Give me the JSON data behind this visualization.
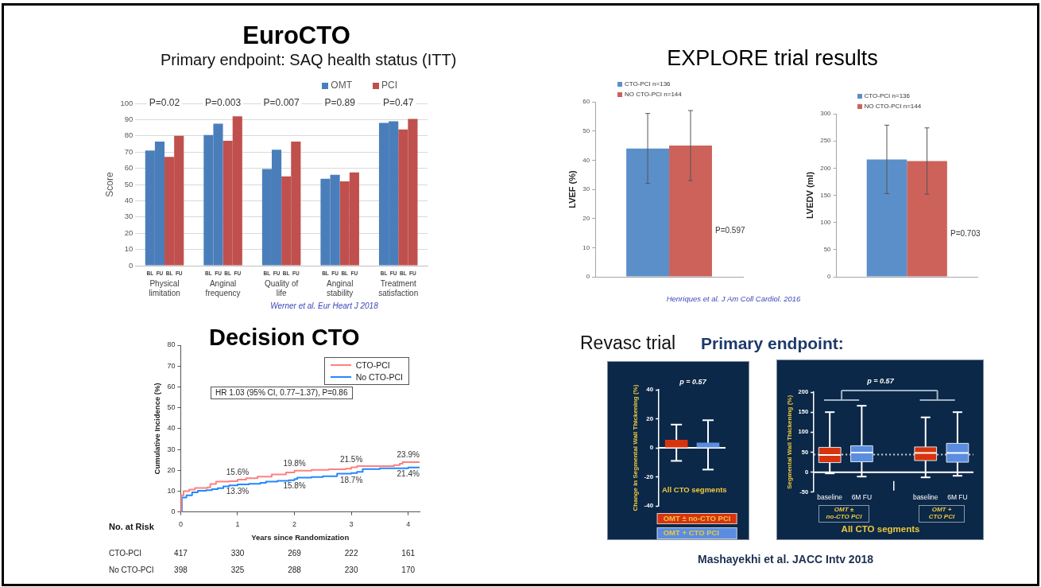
{
  "chart_data": [
    {
      "type": "bar",
      "title": "EuroCTO",
      "subtitle": "Primary endpoint: SAQ health status (ITT)",
      "ylabel": "Score",
      "categories": [
        "Physical limitation",
        "Anginal frequency",
        "Quality of life",
        "Anginal stability",
        "Treatment satisfaction"
      ],
      "series": [
        {
          "name": "OMT",
          "color": "#4a7ebb",
          "values": [
            71,
            80.5,
            59.5,
            53.5,
            88
          ]
        },
        {
          "color": "#4a7ebb",
          "values": [
            76.5,
            87.5,
            71.5,
            56,
            89
          ]
        },
        {
          "name": "PCI",
          "color": "#c0504d",
          "values": [
            67,
            77,
            55,
            52,
            84
          ]
        },
        {
          "color": "#c0504d",
          "values": [
            80,
            92,
            76.5,
            57.5,
            90.5
          ]
        }
      ],
      "ylim": [
        0,
        100
      ],
      "yticks": [
        0,
        10,
        20,
        30,
        40,
        50,
        60,
        70,
        80,
        90,
        100
      ],
      "grid": "y",
      "legend": "top right",
      "annotations": [
        "P=0.02",
        "P=0.003",
        "P=0.007",
        "P=0.89",
        "P=0.47",
        "BL",
        "FU",
        "BL",
        "FU",
        "BL",
        "FU",
        "BL",
        "FU",
        "BL",
        "FU",
        "BL",
        "FU",
        "BL",
        "FU",
        "BL",
        "FU",
        "BL",
        "FU",
        "BL",
        "FU",
        "Werner et al. Eur Heart J 2018"
      ]
    },
    {
      "type": "bar",
      "title": "EXPLORE trial results",
      "ylabel": "LVEF (%)",
      "categories": [
        null
      ],
      "series": [
        {
          "name": "CTO-PCI n=136",
          "color": "#5b8fc9",
          "values": [
            44
          ],
          "errors": [
            12
          ]
        },
        {
          "name": "NO CTO-PCI n=144",
          "color": "#cd625b",
          "values": [
            45
          ],
          "errors": [
            12
          ]
        }
      ],
      "ylim": [
        0,
        60
      ],
      "yticks": [
        0,
        10,
        20,
        30,
        40,
        50,
        60
      ],
      "legend": "top left",
      "annotations": [
        "P=0.597",
        "Henriques et al. J Am Coll Cardiol. 2016"
      ]
    },
    {
      "type": "bar",
      "ylabel": "LVEDV (ml)",
      "categories": [
        null
      ],
      "series": [
        {
          "name": "CTO-PCI n=136",
          "color": "#5b8fc9",
          "values": [
            216
          ],
          "errors": [
            63
          ]
        },
        {
          "name": "NO CTO-PCI n=144",
          "color": "#cd625b",
          "values": [
            213
          ],
          "errors": [
            61
          ]
        }
      ],
      "ylim": [
        0,
        300
      ],
      "yticks": [
        0,
        50,
        100,
        150,
        200,
        250,
        300
      ],
      "legend": "top left",
      "annotations": [
        "P=0.703"
      ]
    },
    {
      "type": "step",
      "title": "Decision CTO",
      "xlabel": "Years since Randomization",
      "ylabel": "Cumulative Incidence (%)",
      "xlim": [
        0,
        4.2
      ],
      "xticks": [
        0,
        1,
        2,
        3,
        4
      ],
      "ylim": [
        0,
        80
      ],
      "yticks": [
        0,
        10,
        20,
        30,
        40,
        50,
        60,
        70,
        80
      ],
      "legend": "top right",
      "series": [
        {
          "name": "CTO-PCI",
          "color": "#ff8080",
          "x": [
            0,
            0.01,
            0.05,
            0.15,
            0.25,
            0.47,
            0.52,
            0.62,
            0.85,
            1,
            1.15,
            1.35,
            1.6,
            1.85,
            2,
            2.3,
            2.6,
            2.9,
            3,
            3.1,
            3.75,
            3.85,
            3.9,
            4,
            4.2
          ],
          "values": [
            0,
            8,
            10,
            10.8,
            11.6,
            11.8,
            13.5,
            14.6,
            14.8,
            15.6,
            16.2,
            17,
            18,
            19,
            19.8,
            20.2,
            20.5,
            20.8,
            21.5,
            22,
            22.5,
            23.2,
            23.9,
            23.9,
            23.9
          ],
          "value_labels": [
            null,
            null,
            null,
            null,
            null,
            null,
            null,
            null,
            null,
            "15.6%",
            null,
            null,
            null,
            null,
            "19.8%",
            null,
            null,
            null,
            "21.5%",
            null,
            null,
            null,
            null,
            "23.9%",
            null
          ]
        },
        {
          "name": "No CTO-PCI",
          "color": "#2288ff",
          "x": [
            0,
            0.02,
            0.1,
            0.2,
            0.3,
            0.45,
            0.55,
            0.65,
            0.75,
            0.85,
            1,
            1.2,
            1.4,
            1.5,
            1.7,
            1.9,
            2,
            2.05,
            2.3,
            2.5,
            2.75,
            3,
            3.1,
            3.2,
            3.5,
            4,
            4.2
          ],
          "values": [
            0,
            7,
            8,
            9.5,
            10.2,
            10.5,
            11,
            11.5,
            12.3,
            12.8,
            13.3,
            13.6,
            14,
            14.6,
            15,
            15.3,
            15.8,
            16.5,
            16.8,
            17.2,
            18.4,
            18.7,
            19.3,
            20.6,
            21,
            21.4,
            21.8
          ],
          "value_labels": [
            null,
            null,
            null,
            null,
            null,
            null,
            null,
            null,
            null,
            null,
            "13.3%",
            null,
            null,
            null,
            null,
            null,
            "15.8%",
            null,
            null,
            null,
            null,
            "18.7%",
            null,
            null,
            null,
            "21.4%",
            null
          ]
        }
      ],
      "annotations": [
        "HR 1.03 (95% CI, 0.77–1.37), P=0.86",
        "No. at Risk",
        "417",
        "330",
        "269",
        "222",
        "161",
        "398",
        "325",
        "288",
        "230",
        "170"
      ]
    },
    {
      "type": "bar",
      "title": "Revasc trial",
      "subtitle": "Primary endpoint:",
      "ylabel": "Change in Segmental Wall Thickening (%)",
      "categories": [
        null
      ],
      "series": [
        {
          "name": "OMT ± no-CTO PCI",
          "color": "#d8330f",
          "values": [
            5.5
          ],
          "errors": [
            [
              -9,
              16
            ]
          ]
        },
        {
          "name": "OMT + CTO PCI",
          "color": "#5a8de0",
          "values": [
            3.5
          ],
          "errors": [
            [
              -15,
              19
            ]
          ]
        }
      ],
      "ylim": [
        -40,
        40
      ],
      "yticks": [
        -40,
        -20,
        0,
        20,
        40
      ],
      "legend": "bottom",
      "annotations": [
        "p = 0.57",
        "All CTO segments"
      ]
    },
    {
      "type": "box",
      "ylabel": "Segmental Wall Thickening (%)",
      "categories": [
        "baseline",
        "6M FU",
        null,
        "baseline",
        "6M FU"
      ],
      "boxes": [
        {
          "low": -3,
          "q1": 24,
          "median": 43,
          "q3": 62,
          "high": 150
        },
        {
          "low": -11,
          "q1": 26,
          "median": 49,
          "q3": 66,
          "high": 166
        },
        null,
        {
          "low": -13,
          "q1": 29,
          "median": 48,
          "q3": 63,
          "high": 137
        },
        {
          "low": -9,
          "q1": 25,
          "median": 48,
          "q3": 72,
          "high": 150
        }
      ],
      "colors": [
        "#d8330f",
        "#5a8de0",
        null,
        "#d8330f",
        "#5a8de0"
      ],
      "ylim": [
        -50,
        200
      ],
      "yticks": [
        -50,
        0,
        50,
        100,
        150,
        200
      ],
      "ref_lines": [
        {
          "axis": "y",
          "value": 44,
          "line_style": "dotted"
        }
      ],
      "annotations": [
        "p = 0.57",
        "OMT ± no-CTO PCI",
        "OMT + CTO PCI",
        "All CTO segments",
        "Mashayekhi et al. JACC Intv 2018"
      ]
    }
  ]
}
